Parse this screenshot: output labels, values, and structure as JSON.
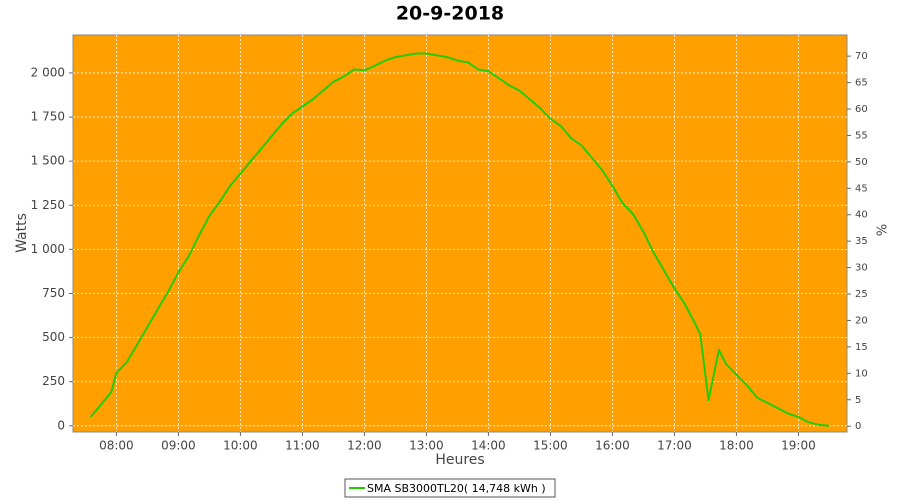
{
  "chart_data": {
    "type": "line",
    "title": "20-9-2018",
    "x_label": "Heures",
    "y_label": "Watts",
    "y2_label": "%",
    "x": [
      "07:35",
      "07:45",
      "07:55",
      "08:00",
      "08:10",
      "08:20",
      "08:30",
      "08:40",
      "08:50",
      "09:00",
      "09:10",
      "09:20",
      "09:30",
      "09:40",
      "09:50",
      "10:00",
      "10:10",
      "10:20",
      "10:30",
      "10:40",
      "10:50",
      "11:00",
      "11:10",
      "11:20",
      "11:30",
      "11:40",
      "11:50",
      "12:00",
      "12:10",
      "12:20",
      "12:30",
      "12:40",
      "12:50",
      "13:00",
      "13:10",
      "13:20",
      "13:30",
      "13:40",
      "13:50",
      "14:00",
      "14:10",
      "14:20",
      "14:30",
      "14:40",
      "14:50",
      "15:00",
      "15:10",
      "15:20",
      "15:30",
      "15:40",
      "15:50",
      "16:00",
      "16:10",
      "16:20",
      "16:30",
      "16:40",
      "16:50",
      "17:00",
      "17:10",
      "17:20",
      "17:25",
      "17:33",
      "17:43",
      "17:50",
      "18:00",
      "18:10",
      "18:20",
      "18:30",
      "18:40",
      "18:50",
      "19:00",
      "19:10",
      "19:20",
      "19:30"
    ],
    "series": [
      {
        "name": "SMA SB3000TL20( 14,748 kWh )",
        "color": "#22cc00",
        "values": [
          50,
          120,
          190,
          300,
          360,
          460,
          560,
          660,
          760,
          870,
          960,
          1080,
          1190,
          1270,
          1360,
          1430,
          1500,
          1570,
          1640,
          1710,
          1770,
          1810,
          1850,
          1900,
          1950,
          1980,
          2020,
          2015,
          2040,
          2070,
          2090,
          2100,
          2110,
          2110,
          2100,
          2090,
          2070,
          2060,
          2020,
          2010,
          1970,
          1930,
          1900,
          1850,
          1800,
          1740,
          1700,
          1630,
          1590,
          1520,
          1450,
          1360,
          1260,
          1200,
          1100,
          980,
          880,
          780,
          690,
          580,
          520,
          145,
          430,
          350,
          290,
          230,
          160,
          130,
          100,
          70,
          50,
          20,
          5,
          0
        ]
      }
    ],
    "xlim": [
      "07:18",
      "19:47"
    ],
    "xticks": [
      "08:00",
      "09:00",
      "10:00",
      "11:00",
      "12:00",
      "13:00",
      "14:00",
      "15:00",
      "16:00",
      "17:00",
      "18:00",
      "19:00"
    ],
    "ylim": [
      -35,
      2215
    ],
    "yticks": [
      0,
      250,
      500,
      750,
      {
        "value": 1000,
        "label": "1 000"
      },
      {
        "value": 1250,
        "label": "1 250"
      },
      {
        "value": 1500,
        "label": "1 500"
      },
      {
        "value": 1750,
        "label": "1 750"
      },
      {
        "value": 2000,
        "label": "2 000"
      }
    ],
    "y2lim": [
      -1.1,
      74
    ],
    "y2ticks": [
      0,
      5,
      10,
      15,
      20,
      25,
      30,
      35,
      40,
      45,
      50,
      55,
      60,
      65,
      70
    ],
    "grid": true,
    "background": "#ff9f00",
    "legend": "bottom"
  }
}
